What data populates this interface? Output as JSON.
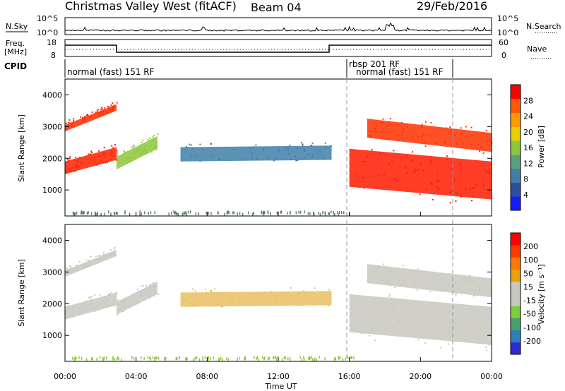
{
  "header": {
    "station": "Christmas Valley West (fitACF)",
    "beam": "Beam 04",
    "date": "29/Feb/2016"
  },
  "top_strip": {
    "nsky_label": "N.Sky",
    "nsky_ticks": [
      "10^5",
      "10^0"
    ],
    "nsearch_label": "N.Search",
    "nsearch_ticks": [
      "10^5",
      "10^0"
    ],
    "freq_label_1": "Freq.",
    "freq_label_2": "[MHz]",
    "freq_ticks": [
      "18",
      "8"
    ],
    "nave_label": "Nave",
    "nave_ticks": [
      "60",
      "0"
    ],
    "cpid_label": "CPID",
    "cpid_segments": [
      {
        "label": "normal (fast) 151 RF",
        "start": 0,
        "end": 16
      },
      {
        "label": "rbsp 201 RF",
        "start": 16,
        "end": 22
      },
      {
        "label": "normal (fast) 151 RF",
        "start": 16,
        "end": 22
      }
    ]
  },
  "colors": {
    "power": [
      "#1a1aff",
      "#2a4fa0",
      "#3f7fa8",
      "#5aa080",
      "#8dc83c",
      "#e8d000",
      "#ff9a00",
      "#ff5a00",
      "#ff0000"
    ],
    "velocity": [
      "#2b2bd8",
      "#2f7fb8",
      "#4aa06a",
      "#7ccf3c",
      "#c8c8c0",
      "#c8c8c0",
      "#f0a000",
      "#ff7a00",
      "#ff3a00",
      "#ff0000"
    ]
  },
  "chart_data": [
    {
      "type": "heatmap",
      "name": "power-panel",
      "xlabel": "",
      "ylabel": "Slant Range [km]",
      "xlim": [
        0,
        24
      ],
      "ylim": [
        180,
        4500
      ],
      "yticks": [
        "1000",
        "2000",
        "3000",
        "4000"
      ],
      "colorbar_label": "Power [dB]",
      "colorbar_ticks": [
        "4",
        "8",
        "12",
        "16",
        "20",
        "24",
        "28"
      ],
      "grid": false,
      "bands": [
        {
          "t0": 0,
          "t1": 2.9,
          "r0": 2850,
          "r1": 3050,
          "r1end": 3700,
          "color": "#ff2a00"
        },
        {
          "t0": 0,
          "t1": 2.9,
          "r0": 1500,
          "r1": 1900,
          "r1end": 2350,
          "color": "#ff2000"
        },
        {
          "t0": 2.9,
          "t1": 5.2,
          "r0": 1650,
          "r1": 2050,
          "r1end": 2700,
          "color": "#8dc83c"
        },
        {
          "t0": 6.5,
          "t1": 15.0,
          "r0": 1900,
          "r1": 2350,
          "r1end": 2400,
          "color": "#3f7fa8"
        },
        {
          "t0": 16.0,
          "t1": 24.0,
          "r0": 1100,
          "r1": 2300,
          "r1end": 1900,
          "color": "#ff1a00"
        },
        {
          "t0": 17.0,
          "t1": 24.0,
          "r0": 2650,
          "r1": 3250,
          "r1end": 2800,
          "color": "#ff3000"
        }
      ]
    },
    {
      "type": "heatmap",
      "name": "velocity-panel",
      "xlabel": "Time UT",
      "ylabel": "Slant Range [km]",
      "xlim": [
        0,
        24
      ],
      "ylim": [
        180,
        4500
      ],
      "xticks": [
        "00:00",
        "04:00",
        "08:00",
        "12:00",
        "16:00",
        "20:00",
        "00:00"
      ],
      "yticks": [
        "1000",
        "2000",
        "3000",
        "4000"
      ],
      "colorbar_label": "Velocity [m s⁻¹]",
      "colorbar_ticks": [
        "200",
        "100",
        "50",
        "15",
        "-15",
        "-50",
        "-100",
        "-200"
      ],
      "grid": false,
      "bands": [
        {
          "t0": 0,
          "t1": 2.9,
          "r0": 2850,
          "r1": 3050,
          "r1end": 3700,
          "color": "#c8c8c0"
        },
        {
          "t0": 0,
          "t1": 2.9,
          "r0": 1500,
          "r1": 1900,
          "r1end": 2350,
          "color": "#c8c8c0"
        },
        {
          "t0": 2.9,
          "t1": 5.2,
          "r0": 1650,
          "r1": 2050,
          "r1end": 2700,
          "color": "#c8c8c0"
        },
        {
          "t0": 6.5,
          "t1": 15.0,
          "r0": 1900,
          "r1": 2350,
          "r1end": 2400,
          "color": "#e8c060"
        },
        {
          "t0": 16.0,
          "t1": 24.0,
          "r0": 1100,
          "r1": 2300,
          "r1end": 1900,
          "color": "#c8c8c0"
        },
        {
          "t0": 17.0,
          "t1": 24.0,
          "r0": 2650,
          "r1": 3250,
          "r1end": 2800,
          "color": "#c8c8c0"
        }
      ]
    }
  ]
}
